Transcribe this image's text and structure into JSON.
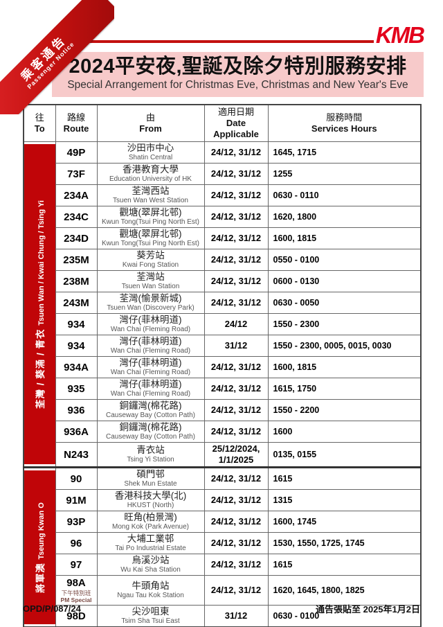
{
  "ribbon": {
    "line1": "乘客通告",
    "line2": "Passenger Notice"
  },
  "logo": "KMB",
  "banner": {
    "title": "2024平安夜,聖誕及除夕特別服務安排",
    "subtitle": "Special Arrangement for Christmas Eve, Christmas and New Year's Eve"
  },
  "table": {
    "columns": [
      {
        "zh": "往",
        "en": "To"
      },
      {
        "zh": "路線",
        "en": "Route"
      },
      {
        "zh": "由",
        "en": "From"
      },
      {
        "zh": "適用日期",
        "en": "Date Applicable"
      },
      {
        "zh": "服務時間",
        "en": "Services Hours"
      }
    ],
    "sections": [
      {
        "district_zh": "荃灣 / 葵涌 / 青衣",
        "district_en": "Tsuen Wan / Kwai Chung / Tsing Yi",
        "rows": [
          {
            "route": "49P",
            "from_zh": "沙田市中心",
            "from_en": "Shatin Central",
            "dates": "24/12, 31/12",
            "hours": "1645, 1715"
          },
          {
            "route": "73F",
            "from_zh": "香港教育大學",
            "from_en": "Education University of HK",
            "dates": "24/12, 31/12",
            "hours": "1255"
          },
          {
            "route": "234A",
            "from_zh": "荃灣西站",
            "from_en": "Tsuen Wan West Station",
            "dates": "24/12, 31/12",
            "hours": "0630 - 0110"
          },
          {
            "route": "234C",
            "from_zh": "觀塘(翠屏北邨)",
            "from_en": "Kwun Tong(Tsui Ping North Est)",
            "dates": "24/12, 31/12",
            "hours": "1620, 1800"
          },
          {
            "route": "234D",
            "from_zh": "觀塘(翠屏北邨)",
            "from_en": "Kwun Tong(Tsui Ping North Est)",
            "dates": "24/12, 31/12",
            "hours": "1600, 1815"
          },
          {
            "route": "235M",
            "from_zh": "葵芳站",
            "from_en": "Kwai Fong Station",
            "dates": "24/12, 31/12",
            "hours": "0550 - 0100"
          },
          {
            "route": "238M",
            "from_zh": "荃灣站",
            "from_en": "Tsuen Wan Station",
            "dates": "24/12, 31/12",
            "hours": "0600 - 0130"
          },
          {
            "route": "243M",
            "from_zh": "荃灣(愉景新城)",
            "from_en": "Tsuen Wan (Discovery Park)",
            "dates": "24/12, 31/12",
            "hours": "0630 - 0050"
          },
          {
            "route": "934",
            "from_zh": "灣仔(菲林明道)",
            "from_en": "Wan Chai (Fleming Road)",
            "dates": "24/12",
            "hours": "1550 - 2300"
          },
          {
            "route": "934",
            "from_zh": "灣仔(菲林明道)",
            "from_en": "Wan Chai (Fleming Road)",
            "dates": "31/12",
            "hours": "1550 - 2300, 0005, 0015, 0030"
          },
          {
            "route": "934A",
            "from_zh": "灣仔(菲林明道)",
            "from_en": "Wan Chai (Fleming Road)",
            "dates": "24/12, 31/12",
            "hours": "1600, 1815"
          },
          {
            "route": "935",
            "from_zh": "灣仔(菲林明道)",
            "from_en": "Wan Chai (Fleming Road)",
            "dates": "24/12, 31/12",
            "hours": "1615, 1750"
          },
          {
            "route": "936",
            "from_zh": "銅鑼灣(棉花路)",
            "from_en": "Causeway Bay (Cotton Path)",
            "dates": "24/12, 31/12",
            "hours": "1550 - 2200"
          },
          {
            "route": "936A",
            "from_zh": "銅鑼灣(棉花路)",
            "from_en": "Causeway Bay (Cotton Path)",
            "dates": "24/12, 31/12",
            "hours": "1600"
          },
          {
            "route": "N243",
            "from_zh": "青衣站",
            "from_en": "Tsing Yi Station",
            "dates": "25/12/2024, 1/1/2025",
            "hours": "0135, 0155"
          }
        ]
      },
      {
        "district_zh": "將軍澳",
        "district_en": "Tseung Kwan O",
        "rows": [
          {
            "route": "90",
            "from_zh": "碩門邨",
            "from_en": "Shek Mun Estate",
            "dates": "24/12, 31/12",
            "hours": "1615"
          },
          {
            "route": "91M",
            "from_zh": "香港科技大學(北)",
            "from_en": "HKUST (North)",
            "dates": "24/12, 31/12",
            "hours": "1315"
          },
          {
            "route": "93P",
            "from_zh": "旺角(柏景灣)",
            "from_en": "Mong Kok (Park Avenue)",
            "dates": "24/12, 31/12",
            "hours": "1600, 1745"
          },
          {
            "route": "96",
            "from_zh": "大埔工業邨",
            "from_en": "Tai Po Industrial Estate",
            "dates": "24/12, 31/12",
            "hours": "1530, 1550, 1725, 1745"
          },
          {
            "route": "97",
            "from_zh": "烏溪沙站",
            "from_en": "Wu Kai Sha Station",
            "dates": "24/12, 31/12",
            "hours": "1615"
          },
          {
            "route": "98A",
            "route_note_zh": "下午特別班",
            "route_note_en": "PM Special",
            "from_zh": "牛頭角站",
            "from_en": "Ngau Tau Kok Station",
            "dates": "24/12, 31/12",
            "hours": "1620, 1645, 1800, 1825"
          },
          {
            "route": "98D",
            "from_zh": "尖沙咀東",
            "from_en": "Tsim Sha Tsui East",
            "dates": "31/12",
            "hours": "0630 - 0100"
          }
        ]
      }
    ]
  },
  "footer": {
    "left": "OPD/P/087/24",
    "right": "通告張貼至 2025年1月2日"
  },
  "colors": {
    "brand_red": "#c00508",
    "banner_pink": "#f7caca",
    "logo_red": "#e3001b"
  }
}
